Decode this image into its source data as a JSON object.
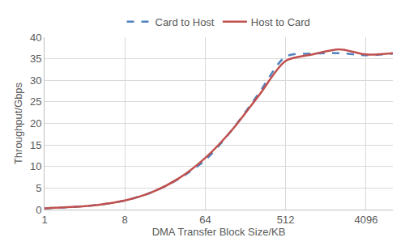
{
  "chart_data": {
    "type": "line",
    "x_label": "DMA Transfer Block Size/KB",
    "y_label": "Throughput/Gbps",
    "x": [
      1,
      2,
      4,
      8,
      16,
      32,
      64,
      128,
      256,
      512,
      1024,
      2048,
      4096,
      8192
    ],
    "series": [
      {
        "name": "Card to Host",
        "color": "#4f81bd",
        "line_style": "dash",
        "values": [
          0.3,
          0.6,
          1.1,
          2.1,
          4.0,
          7.1,
          11.5,
          18.5,
          27.0,
          35.5,
          36.2,
          36.3,
          35.8,
          36.2
        ]
      },
      {
        "name": "Host to Card",
        "color": "#c0504d",
        "line_style": "solid",
        "values": [
          0.3,
          0.6,
          1.1,
          2.1,
          4.0,
          7.2,
          12.0,
          18.5,
          26.5,
          34.5,
          36.0,
          37.2,
          36.0,
          36.3
        ]
      }
    ],
    "log": "x",
    "xlim": [
      1,
      8192
    ],
    "xticks": [
      1,
      8,
      64,
      512,
      4096
    ],
    "ylim": [
      0,
      40
    ],
    "yticks": [
      0,
      5,
      10,
      15,
      20,
      25,
      30,
      35,
      40
    ],
    "grid": true,
    "legend": "top"
  }
}
